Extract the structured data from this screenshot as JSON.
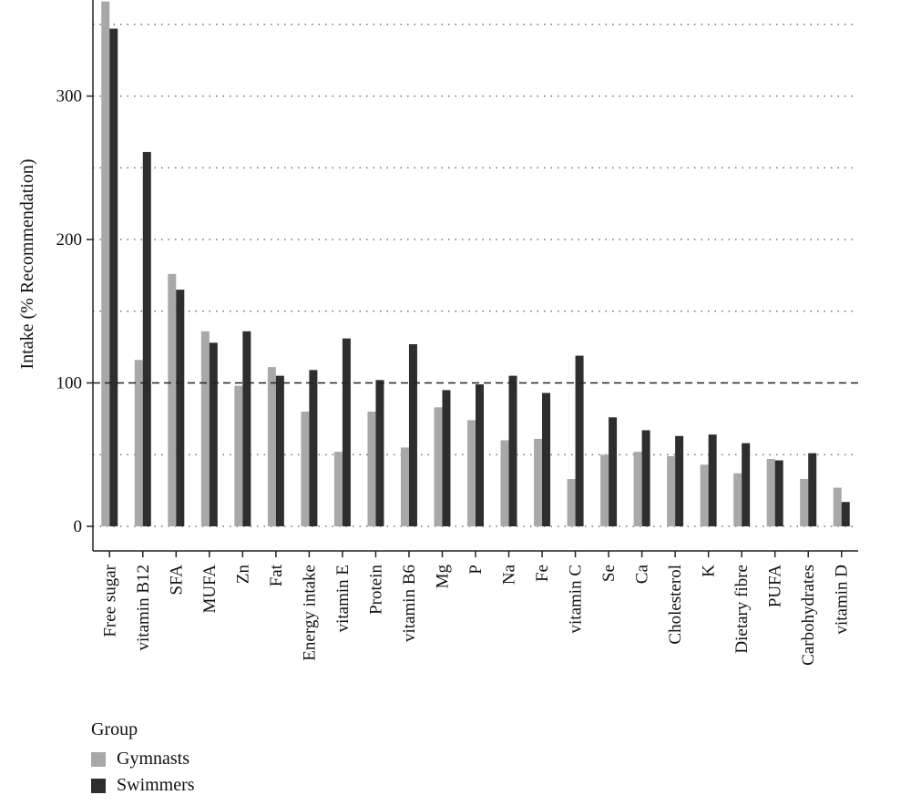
{
  "chart_data": {
    "type": "bar",
    "ylabel": "Intake (% Recommendation)",
    "yticks": [
      0,
      100,
      200,
      300
    ],
    "ylim": [
      -17,
      370
    ],
    "reference_line": 100,
    "grid": "horizontal dotted",
    "categories": [
      "Free sugar",
      "vitamin B12",
      "SFA",
      "MUFA",
      "Zn",
      "Fat",
      "Energy intake",
      "vitamin E",
      "Protein",
      "vitamin B6",
      "Mg",
      "P",
      "Na",
      "Fe",
      "vitamin C",
      "Se",
      "Ca",
      "Cholesterol",
      "K",
      "Dietary fibre",
      "PUFA",
      "Carbohydrates",
      "vitamin D"
    ],
    "series": [
      {
        "name": "Gymnasts",
        "color": "#a8a8a8",
        "values": [
          366,
          116,
          176,
          136,
          98,
          111,
          80,
          52,
          80,
          55,
          83,
          74,
          60,
          61,
          33,
          50,
          52,
          49,
          43,
          37,
          47,
          33,
          27
        ]
      },
      {
        "name": "Swimmers",
        "color": "#2e2e2e",
        "values": [
          347,
          261,
          165,
          128,
          136,
          105,
          109,
          131,
          102,
          127,
          95,
          99,
          105,
          93,
          119,
          76,
          67,
          63,
          64,
          58,
          46,
          51,
          17
        ]
      }
    ],
    "legend": {
      "title": "Group",
      "position": "bottom-left"
    }
  }
}
